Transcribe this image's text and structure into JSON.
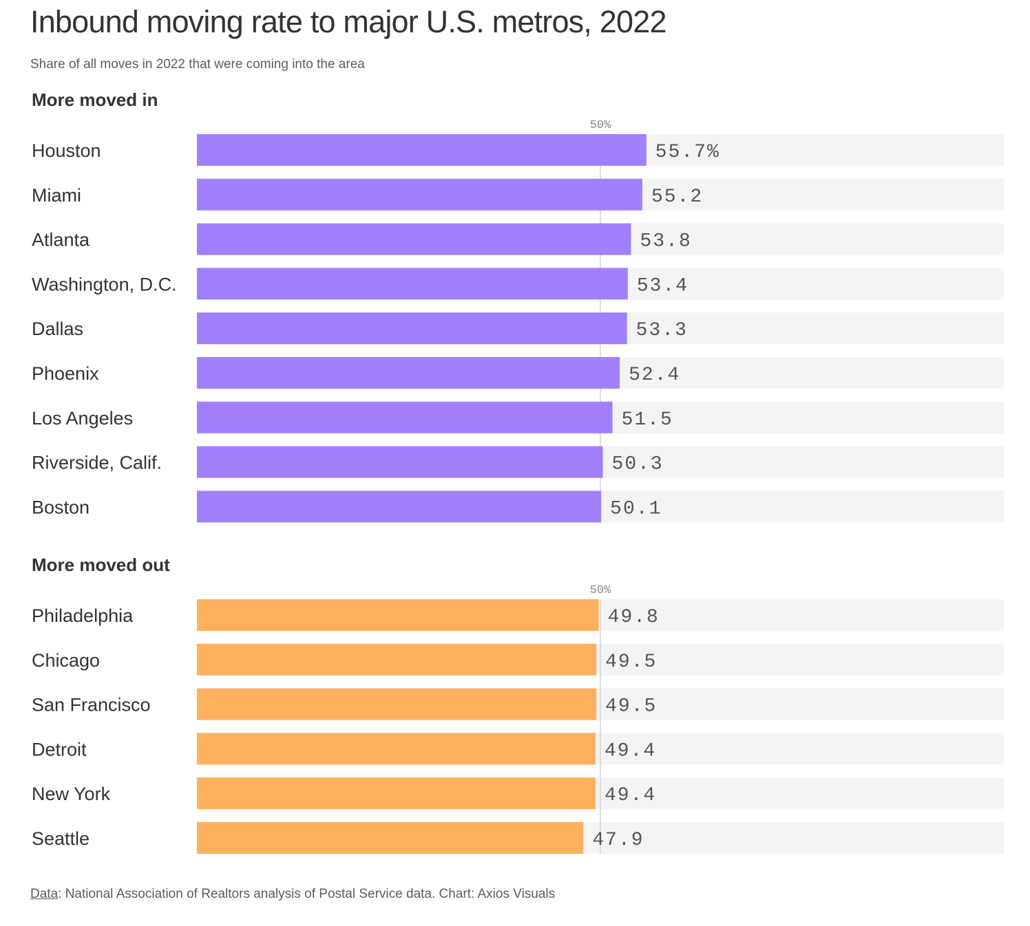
{
  "title": "Inbound moving rate to major U.S. metros, 2022",
  "subtitle": "Share of all moves in 2022 that were coming into the area",
  "footer": {
    "data_link": "Data",
    "text": ": National Association of Realtors analysis of Postal Service data. Chart: Axios Visuals"
  },
  "colors": {
    "moved_in": "#a27ffd",
    "moved_out": "#fdb05e",
    "track": "#f4f4f4",
    "reference_line": "#d4d4d4"
  },
  "chart_data": [
    {
      "type": "bar",
      "title": "More moved in",
      "reference_label": "50%",
      "reference_value": 50,
      "xlim": [
        0,
        100
      ],
      "value_suffix_first": "%",
      "categories": [
        "Houston",
        "Miami",
        "Atlanta",
        "Washington, D.C.",
        "Dallas",
        "Phoenix",
        "Los Angeles",
        "Riverside, Calif.",
        "Boston"
      ],
      "values": [
        55.7,
        55.2,
        53.8,
        53.4,
        53.3,
        52.4,
        51.5,
        50.3,
        50.1
      ],
      "value_labels": [
        "55.7%",
        "55.2",
        "53.8",
        "53.4",
        "53.3",
        "52.4",
        "51.5",
        "50.3",
        "50.1"
      ],
      "color": "#a27ffd"
    },
    {
      "type": "bar",
      "title": "More moved out",
      "reference_label": "50%",
      "reference_value": 50,
      "xlim": [
        0,
        100
      ],
      "categories": [
        "Philadelphia",
        "Chicago",
        "San Francisco",
        "Detroit",
        "New York",
        "Seattle"
      ],
      "values": [
        49.8,
        49.5,
        49.5,
        49.4,
        49.4,
        47.9
      ],
      "value_labels": [
        "49.8",
        "49.5",
        "49.5",
        "49.4",
        "49.4",
        "47.9"
      ],
      "color": "#fdb05e"
    }
  ]
}
